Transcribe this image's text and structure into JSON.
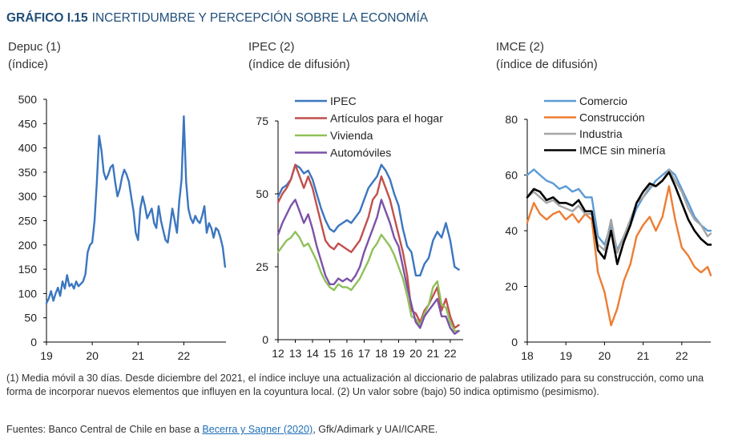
{
  "header": {
    "number": "GRÁFICO I.15",
    "title": "INCERTIDUMBRE Y PERCEPCIÓN SOBRE LA ECONOMÍA"
  },
  "notes": {
    "text": "(1) Media móvil a 30 días. Desde diciembre del 2021, el índice incluye una actualización al diccionario de palabras utilizado para su construcción, como una forma de incorporar nuevos elementos que influyen en la coyuntura local. (2) Un valor sobre (bajo) 50 indica optimismo (pesimismo).",
    "source_prefix": "Fuentes: Banco Central de Chile en base a ",
    "source_link": "Becerra y Sagner (2020)",
    "source_suffix": ", Gfk/Adimark y UAI/ICARE."
  },
  "colors": {
    "blue": "#3b76c0",
    "red": "#c0504d",
    "green": "#8fc15a",
    "purple": "#7b52a8",
    "lightblue": "#5b9bd5",
    "orange": "#ed7d31",
    "gray": "#a5a5a5",
    "black": "#000000"
  },
  "chart_data": [
    {
      "type": "line",
      "title": "Depuc (1)",
      "subtitle": "(índice)",
      "ylim": [
        0,
        500
      ],
      "yticks": [
        0,
        50,
        100,
        150,
        200,
        250,
        300,
        350,
        400,
        450,
        500
      ],
      "xlim": [
        2019.0,
        2022.92
      ],
      "xticks": [
        {
          "v": 2019,
          "label": "19"
        },
        {
          "v": 2020,
          "label": "20"
        },
        {
          "v": 2021,
          "label": "21"
        },
        {
          "v": 2022,
          "label": "22"
        }
      ],
      "series": [
        {
          "color": "#3b76c0",
          "x": [
            2019.0,
            2019.05,
            2019.1,
            2019.15,
            2019.2,
            2019.25,
            2019.3,
            2019.35,
            2019.4,
            2019.45,
            2019.5,
            2019.55,
            2019.6,
            2019.65,
            2019.7,
            2019.75,
            2019.8,
            2019.85,
            2019.9,
            2019.95,
            2020.0,
            2020.05,
            2020.1,
            2020.15,
            2020.2,
            2020.25,
            2020.3,
            2020.35,
            2020.4,
            2020.45,
            2020.5,
            2020.55,
            2020.6,
            2020.65,
            2020.7,
            2020.75,
            2020.8,
            2020.85,
            2020.9,
            2020.95,
            2021.0,
            2021.05,
            2021.1,
            2021.15,
            2021.2,
            2021.25,
            2021.3,
            2021.35,
            2021.4,
            2021.45,
            2021.5,
            2021.55,
            2021.6,
            2021.65,
            2021.7,
            2021.75,
            2021.8,
            2021.85,
            2021.9,
            2021.95,
            2022.0,
            2022.05,
            2022.1,
            2022.15,
            2022.2,
            2022.25,
            2022.3,
            2022.35,
            2022.4,
            2022.45,
            2022.5,
            2022.55,
            2022.6,
            2022.65,
            2022.7,
            2022.75,
            2022.8,
            2022.85,
            2022.9
          ],
          "values": [
            80,
            90,
            105,
            85,
            100,
            112,
            95,
            125,
            110,
            138,
            115,
            120,
            110,
            125,
            115,
            120,
            125,
            140,
            185,
            200,
            205,
            250,
            330,
            425,
            395,
            350,
            335,
            345,
            360,
            365,
            330,
            300,
            315,
            340,
            355,
            345,
            330,
            300,
            270,
            225,
            210,
            275,
            300,
            280,
            255,
            265,
            275,
            245,
            235,
            280,
            250,
            230,
            210,
            205,
            240,
            275,
            250,
            225,
            290,
            335,
            465,
            330,
            275,
            255,
            245,
            260,
            250,
            245,
            260,
            280,
            225,
            245,
            235,
            215,
            235,
            230,
            215,
            195,
            155
          ]
        }
      ]
    },
    {
      "type": "line",
      "title": "IPEC (2)",
      "subtitle": "(índice de difusión)",
      "ylim": [
        0,
        75
      ],
      "yticks": [
        0,
        25,
        50,
        75
      ],
      "xlim": [
        2012.0,
        2022.75
      ],
      "xticks": [
        {
          "v": 2012,
          "label": "12"
        },
        {
          "v": 2013,
          "label": "13"
        },
        {
          "v": 2014,
          "label": "14"
        },
        {
          "v": 2015,
          "label": "15"
        },
        {
          "v": 2016,
          "label": "16"
        },
        {
          "v": 2017,
          "label": "17"
        },
        {
          "v": 2018,
          "label": "18"
        },
        {
          "v": 2019,
          "label": "19"
        },
        {
          "v": 2020,
          "label": "20"
        },
        {
          "v": 2021,
          "label": "21"
        },
        {
          "v": 2022,
          "label": "22"
        }
      ],
      "series": [
        {
          "name": "IPEC",
          "color": "#3b76c0",
          "x": [
            2012.0,
            2012.25,
            2012.5,
            2012.75,
            2013.0,
            2013.25,
            2013.5,
            2013.75,
            2014.0,
            2014.25,
            2014.5,
            2014.75,
            2015.0,
            2015.25,
            2015.5,
            2015.75,
            2016.0,
            2016.25,
            2016.5,
            2016.75,
            2017.0,
            2017.25,
            2017.5,
            2017.75,
            2018.0,
            2018.25,
            2018.5,
            2018.75,
            2019.0,
            2019.25,
            2019.5,
            2019.75,
            2020.0,
            2020.25,
            2020.5,
            2020.75,
            2021.0,
            2021.25,
            2021.5,
            2021.75,
            2022.0,
            2022.25,
            2022.5
          ],
          "values": [
            49,
            52,
            53,
            55,
            60,
            59,
            57,
            58,
            55,
            50,
            45,
            41,
            38,
            37,
            39,
            40,
            41,
            40,
            42,
            44,
            48,
            52,
            54,
            56,
            60,
            58,
            55,
            50,
            46,
            38,
            32,
            30,
            22,
            22,
            26,
            28,
            34,
            37,
            35,
            40,
            34,
            25,
            24
          ]
        },
        {
          "name": "Artículos para el hogar",
          "color": "#c0504d",
          "x": [
            2012.0,
            2012.25,
            2012.5,
            2012.75,
            2013.0,
            2013.25,
            2013.5,
            2013.75,
            2014.0,
            2014.25,
            2014.5,
            2014.75,
            2015.0,
            2015.25,
            2015.5,
            2015.75,
            2016.0,
            2016.25,
            2016.5,
            2016.75,
            2017.0,
            2017.25,
            2017.5,
            2017.75,
            2018.0,
            2018.25,
            2018.5,
            2018.75,
            2019.0,
            2019.25,
            2019.5,
            2019.75,
            2020.0,
            2020.25,
            2020.5,
            2020.75,
            2021.0,
            2021.25,
            2021.5,
            2021.75,
            2022.0,
            2022.25,
            2022.5
          ],
          "values": [
            47,
            50,
            52,
            55,
            60,
            56,
            52,
            56,
            52,
            46,
            40,
            34,
            32,
            31,
            33,
            32,
            31,
            30,
            32,
            34,
            38,
            42,
            48,
            50,
            56,
            52,
            48,
            42,
            36,
            30,
            22,
            10,
            9,
            6,
            10,
            12,
            15,
            18,
            10,
            14,
            8,
            4,
            5
          ]
        },
        {
          "name": "Vivienda",
          "color": "#8fc15a",
          "x": [
            2012.0,
            2012.25,
            2012.5,
            2012.75,
            2013.0,
            2013.25,
            2013.5,
            2013.75,
            2014.0,
            2014.25,
            2014.5,
            2014.75,
            2015.0,
            2015.25,
            2015.5,
            2015.75,
            2016.0,
            2016.25,
            2016.5,
            2016.75,
            2017.0,
            2017.25,
            2017.5,
            2017.75,
            2018.0,
            2018.25,
            2018.5,
            2018.75,
            2019.0,
            2019.25,
            2019.5,
            2019.75,
            2020.0,
            2020.25,
            2020.5,
            2020.75,
            2021.0,
            2021.25,
            2021.5,
            2021.75,
            2022.0,
            2022.25,
            2022.5
          ],
          "values": [
            30,
            32,
            34,
            35,
            37,
            35,
            32,
            33,
            30,
            27,
            23,
            20,
            18,
            17,
            19,
            18,
            18,
            17,
            19,
            21,
            24,
            27,
            31,
            33,
            36,
            34,
            32,
            29,
            25,
            21,
            15,
            8,
            7,
            5,
            9,
            12,
            18,
            20,
            12,
            11,
            6,
            3,
            3
          ]
        },
        {
          "name": "Automóviles",
          "color": "#7b52a8",
          "x": [
            2012.0,
            2012.25,
            2012.5,
            2012.75,
            2013.0,
            2013.25,
            2013.5,
            2013.75,
            2014.0,
            2014.25,
            2014.5,
            2014.75,
            2015.0,
            2015.25,
            2015.5,
            2015.75,
            2016.0,
            2016.25,
            2016.5,
            2016.75,
            2017.0,
            2017.25,
            2017.5,
            2017.75,
            2018.0,
            2018.25,
            2018.5,
            2018.75,
            2019.0,
            2019.25,
            2019.5,
            2019.75,
            2020.0,
            2020.25,
            2020.5,
            2020.75,
            2021.0,
            2021.25,
            2021.5,
            2021.75,
            2022.0,
            2022.25,
            2022.5
          ],
          "values": [
            36,
            40,
            43,
            46,
            48,
            44,
            40,
            43,
            38,
            32,
            27,
            22,
            19,
            19,
            21,
            20,
            21,
            20,
            22,
            25,
            30,
            34,
            38,
            42,
            48,
            44,
            40,
            35,
            32,
            25,
            18,
            12,
            6,
            4,
            8,
            10,
            12,
            14,
            8,
            8,
            4,
            2,
            3
          ]
        }
      ]
    },
    {
      "type": "line",
      "title": "IMCE (2)",
      "subtitle": "(índice de difusión)",
      "ylim": [
        0,
        80
      ],
      "yticks": [
        0,
        20,
        40,
        60,
        80
      ],
      "xlim": [
        2018.0,
        2022.75
      ],
      "xticks": [
        {
          "v": 2018,
          "label": "18"
        },
        {
          "v": 2019,
          "label": "19"
        },
        {
          "v": 2020,
          "label": "20"
        },
        {
          "v": 2021,
          "label": "21"
        },
        {
          "v": 2022,
          "label": "22"
        }
      ],
      "series": [
        {
          "name": "Comercio",
          "color": "#5b9bd5",
          "x": [
            2018.0,
            2018.17,
            2018.33,
            2018.5,
            2018.67,
            2018.83,
            2019.0,
            2019.17,
            2019.33,
            2019.5,
            2019.67,
            2019.83,
            2020.0,
            2020.17,
            2020.33,
            2020.5,
            2020.67,
            2020.83,
            2021.0,
            2021.17,
            2021.33,
            2021.5,
            2021.67,
            2021.83,
            2022.0,
            2022.17,
            2022.33,
            2022.5,
            2022.67,
            2022.75
          ],
          "values": [
            60,
            62,
            60,
            58,
            57,
            55,
            56,
            54,
            55,
            52,
            52,
            38,
            35,
            42,
            33,
            38,
            42,
            48,
            52,
            55,
            58,
            60,
            62,
            60,
            55,
            50,
            45,
            42,
            40,
            40
          ]
        },
        {
          "name": "Construcción",
          "color": "#ed7d31",
          "x": [
            2018.0,
            2018.17,
            2018.33,
            2018.5,
            2018.67,
            2018.83,
            2019.0,
            2019.17,
            2019.33,
            2019.5,
            2019.67,
            2019.83,
            2020.0,
            2020.17,
            2020.33,
            2020.5,
            2020.67,
            2020.83,
            2021.0,
            2021.17,
            2021.33,
            2021.5,
            2021.67,
            2021.83,
            2022.0,
            2022.17,
            2022.33,
            2022.5,
            2022.67,
            2022.75
          ],
          "values": [
            43,
            50,
            46,
            44,
            46,
            47,
            44,
            46,
            43,
            46,
            44,
            25,
            18,
            6,
            12,
            22,
            28,
            38,
            42,
            45,
            40,
            45,
            56,
            44,
            34,
            31,
            27,
            25,
            27,
            24
          ]
        },
        {
          "name": "Industria",
          "color": "#a5a5a5",
          "x": [
            2018.0,
            2018.17,
            2018.33,
            2018.5,
            2018.67,
            2018.83,
            2019.0,
            2019.17,
            2019.33,
            2019.5,
            2019.67,
            2019.83,
            2020.0,
            2020.17,
            2020.33,
            2020.5,
            2020.67,
            2020.83,
            2021.0,
            2021.17,
            2021.33,
            2021.5,
            2021.67,
            2021.83,
            2022.0,
            2022.17,
            2022.33,
            2022.5,
            2022.67,
            2022.75
          ],
          "values": [
            52,
            54,
            52,
            50,
            51,
            49,
            48,
            47,
            49,
            46,
            46,
            35,
            33,
            44,
            32,
            38,
            44,
            50,
            52,
            56,
            56,
            58,
            62,
            58,
            54,
            48,
            44,
            42,
            38,
            39
          ]
        },
        {
          "name": "IMCE sin minería",
          "color": "#000000",
          "x": [
            2018.0,
            2018.17,
            2018.33,
            2018.5,
            2018.67,
            2018.83,
            2019.0,
            2019.17,
            2019.33,
            2019.5,
            2019.67,
            2019.83,
            2020.0,
            2020.17,
            2020.33,
            2020.5,
            2020.67,
            2020.83,
            2021.0,
            2021.17,
            2021.33,
            2021.5,
            2021.67,
            2021.83,
            2022.0,
            2022.17,
            2022.33,
            2022.5,
            2022.67,
            2022.75
          ],
          "values": [
            52,
            55,
            54,
            51,
            52,
            50,
            50,
            49,
            51,
            47,
            47,
            33,
            30,
            40,
            28,
            36,
            42,
            50,
            54,
            57,
            56,
            58,
            61,
            56,
            50,
            44,
            40,
            37,
            35,
            35
          ]
        }
      ]
    }
  ]
}
